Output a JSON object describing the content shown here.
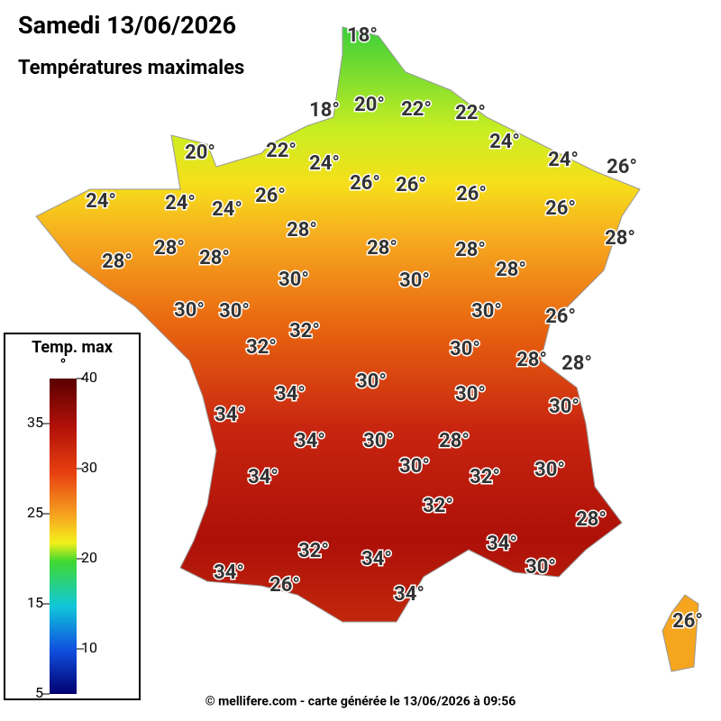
{
  "header": {
    "title": "Samedi 13/06/2026",
    "subtitle": "Températures maximales"
  },
  "map": {
    "labels": [
      "18°",
      "18°",
      "20°",
      "22°",
      "22°",
      "20°",
      "22°",
      "24°",
      "24°",
      "24°",
      "26°",
      "24°",
      "24°",
      "24°",
      "26°",
      "26°",
      "26°",
      "26°",
      "26°",
      "28°",
      "28°",
      "28°",
      "28°",
      "28°",
      "28°",
      "28°",
      "28°",
      "30°",
      "30°",
      "30°",
      "30°",
      "30°",
      "26°",
      "32°",
      "32°",
      "30°",
      "28°",
      "28°",
      "30°",
      "34°",
      "30°",
      "34°",
      "30°",
      "34°",
      "30°",
      "28°",
      "34°",
      "30°",
      "32°",
      "30°",
      "32°",
      "28°",
      "32°",
      "34°",
      "34°",
      "34°",
      "30°",
      "26°",
      "34°",
      "26°"
    ]
  },
  "legend": {
    "title": "Temp. max",
    "unit": "°",
    "ticks": [
      40,
      35,
      30,
      25,
      20,
      15,
      10,
      5
    ]
  },
  "footer": "© mellifere.com - carte générée le 13/06/2026 à 09:56"
}
